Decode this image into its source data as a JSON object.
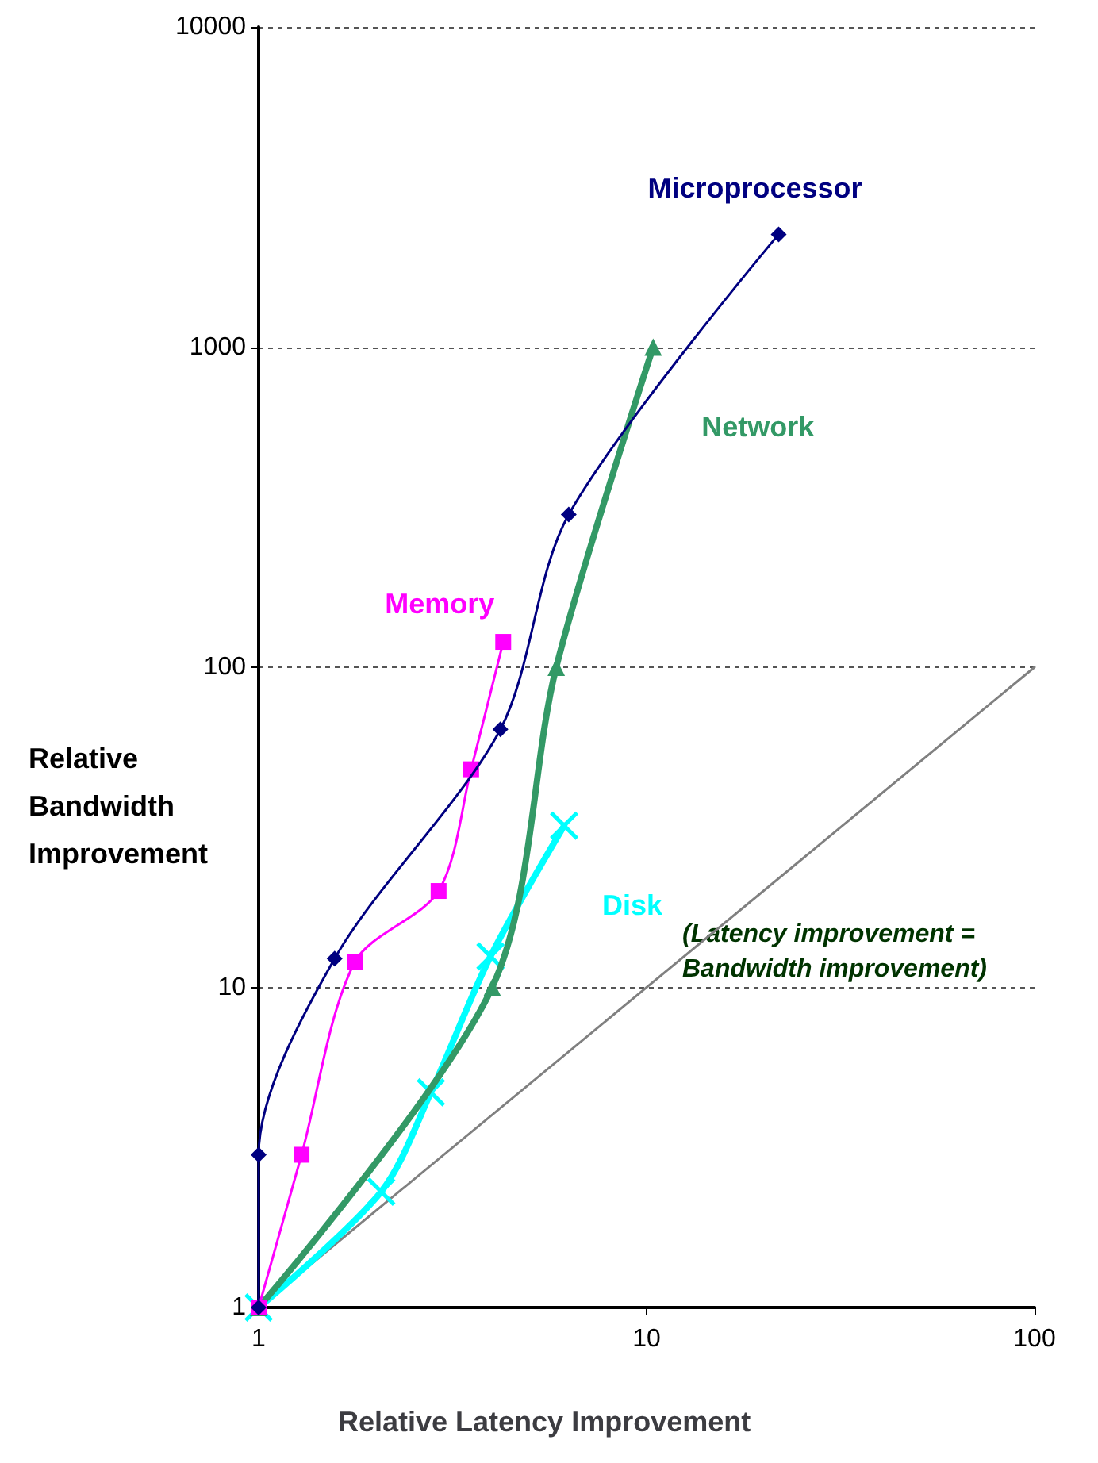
{
  "chart_data": {
    "type": "line",
    "xlabel": "Relative Latency Improvement",
    "ylabel": "Relative Bandwidth Improvement",
    "log": "xy",
    "xlim": [
      1,
      100
    ],
    "xticks": [
      1,
      10,
      100
    ],
    "ylim": [
      1,
      10000
    ],
    "yticks": [
      1,
      10,
      100,
      1000,
      10000
    ],
    "grid": "y",
    "legend": false,
    "series": [
      {
        "name": "Microprocessor",
        "color": "#000080",
        "marker": "diamond",
        "x": [
          1,
          1,
          1.57,
          4.2,
          6.3,
          21.9
        ],
        "values": [
          1,
          3,
          12.3,
          64,
          300,
          2250
        ]
      },
      {
        "name": "Memory",
        "color": "#ff00ff",
        "marker": "square",
        "x": [
          1,
          1.29,
          1.77,
          2.91,
          3.53,
          4.27
        ],
        "values": [
          1,
          3,
          12,
          20,
          48,
          120
        ]
      },
      {
        "name": "Network",
        "color": "#339966",
        "marker": "triangle",
        "x": [
          1,
          4,
          5.85,
          10.4
        ],
        "values": [
          1,
          10,
          100,
          1000
        ]
      },
      {
        "name": "Disk",
        "color": "#00ffff",
        "marker": "cross",
        "x": [
          1,
          2.07,
          2.78,
          3.96,
          6.13
        ],
        "values": [
          1,
          2.3,
          4.7,
          12.5,
          32
        ]
      },
      {
        "color": "#808080",
        "marker": "none",
        "x": [
          1,
          100
        ],
        "values": [
          1,
          100
        ]
      }
    ],
    "annotations": [
      "(Latency improvement = Bandwidth improvement)"
    ]
  }
}
